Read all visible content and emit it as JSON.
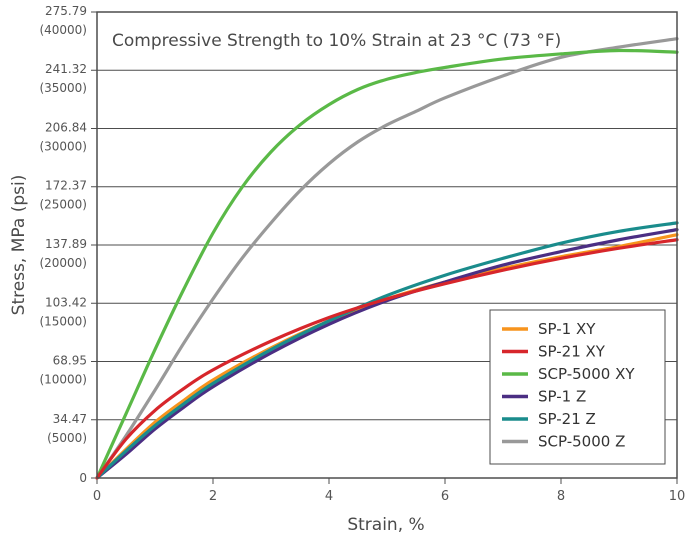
{
  "chart_data": {
    "type": "line",
    "title": "Compressive Strength to 10% Strain at 23 °C (73 °F)",
    "xlabel": "Strain, %",
    "ylabel": "Stress, MPa (psi)",
    "xlim": [
      0,
      10
    ],
    "ylim": [
      0,
      275.79
    ],
    "x_ticks": [
      0,
      2,
      4,
      6,
      8,
      10
    ],
    "x_tick_labels": [
      "0",
      "2",
      "4",
      "6",
      "8",
      "10"
    ],
    "y_ticks": [
      {
        "value": 0,
        "mpa": "0",
        "psi": ""
      },
      {
        "value": 34.47,
        "mpa": "34.47",
        "psi": "(5000)"
      },
      {
        "value": 68.95,
        "mpa": "68.95",
        "psi": "(10000)"
      },
      {
        "value": 103.42,
        "mpa": "103.42",
        "psi": "(15000)"
      },
      {
        "value": 137.89,
        "mpa": "137.89",
        "psi": "(20000)"
      },
      {
        "value": 172.37,
        "mpa": "172.37",
        "psi": "(25000)"
      },
      {
        "value": 206.84,
        "mpa": "206.84",
        "psi": "(30000)"
      },
      {
        "value": 241.32,
        "mpa": "241.32",
        "psi": "(35000)"
      },
      {
        "value": 275.79,
        "mpa": "275.79",
        "psi": "(40000)"
      }
    ],
    "grid": "horizontal",
    "legend_position": "bottom-right",
    "series": [
      {
        "name": "SP-1 XY",
        "color": "#F7941D",
        "x": [
          0,
          0.5,
          1,
          1.5,
          2,
          3,
          4,
          5,
          6,
          7,
          8,
          9,
          10
        ],
        "y": [
          0,
          17,
          33,
          46,
          58,
          77,
          93,
          106,
          116,
          124,
          131,
          137,
          144
        ]
      },
      {
        "name": "SP-21 XY",
        "color": "#D7262B",
        "x": [
          0,
          0.5,
          1,
          1.5,
          2,
          3,
          4,
          5,
          6,
          7,
          8,
          9,
          10
        ],
        "y": [
          0,
          23,
          40,
          53,
          64,
          81,
          95,
          106,
          115,
          123,
          130,
          136,
          141
        ]
      },
      {
        "name": "SCP-5000 XY",
        "color": "#5AB947",
        "x": [
          0,
          0.5,
          1,
          1.5,
          2,
          2.5,
          3,
          3.5,
          4,
          4.5,
          5,
          5.5,
          6,
          7,
          8,
          9,
          10
        ],
        "y": [
          0,
          38,
          76,
          112,
          145,
          172,
          193,
          209,
          221,
          230,
          236,
          240,
          243,
          248,
          251,
          253,
          252
        ]
      },
      {
        "name": "SP-1 Z",
        "color": "#4B2E83",
        "x": [
          0,
          0.5,
          1,
          1.5,
          2,
          3,
          4,
          5,
          6,
          7,
          8,
          9,
          10
        ],
        "y": [
          0,
          14,
          29,
          42,
          54,
          74,
          91,
          105,
          116,
          126,
          134,
          141,
          147
        ]
      },
      {
        "name": "SP-21 Z",
        "color": "#1A8C8C",
        "x": [
          0,
          0.5,
          1,
          1.5,
          2,
          3,
          4,
          5,
          6,
          7,
          8,
          9,
          10
        ],
        "y": [
          0,
          16,
          31,
          44,
          56,
          76,
          93,
          108,
          120,
          130,
          139,
          146,
          151
        ]
      },
      {
        "name": "SCP-5000 Z",
        "color": "#999999",
        "x": [
          0,
          0.5,
          1,
          1.5,
          2,
          2.5,
          3,
          3.5,
          4,
          4.5,
          5,
          5.5,
          6,
          7,
          8,
          9,
          10
        ],
        "y": [
          0,
          25,
          52,
          80,
          106,
          130,
          151,
          170,
          186,
          199,
          209,
          217,
          225,
          238,
          249,
          255,
          260
        ]
      }
    ]
  }
}
